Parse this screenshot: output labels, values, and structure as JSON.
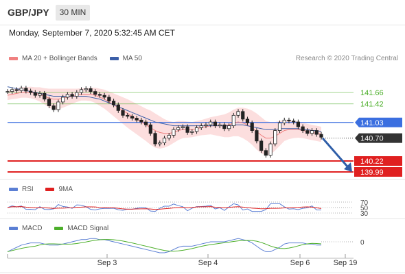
{
  "header": {
    "symbol": "GBP/JPY",
    "timeframe": "30 MIN",
    "datetime": "Monday, September 7, 2020 5:32:45 AM CET"
  },
  "legends": {
    "main": [
      {
        "label": "MA 20 + Bollinger Bands",
        "color": "#f08080"
      },
      {
        "label": "MA 50",
        "color": "#3c5fa8"
      }
    ],
    "rsi": [
      {
        "label": "RSI",
        "color": "#5b7fd4"
      },
      {
        "label": "9MA",
        "color": "#e02020"
      }
    ],
    "macd": [
      {
        "label": "MACD",
        "color": "#5b7fd4"
      },
      {
        "label": "MACD Signal",
        "color": "#4caf2a"
      }
    ]
  },
  "research_note": "Research © 2020 Trading Central",
  "x_axis_labels": [
    "Sep 3",
    "Sep 4",
    "Sep 6",
    "Sep 19"
  ],
  "chart_data": {
    "type": "line",
    "price_levels": [
      {
        "value": 141.66,
        "label": "141.66",
        "kind": "resistance",
        "color": "#4caf2a"
      },
      {
        "value": 141.42,
        "label": "141.42",
        "kind": "resistance",
        "color": "#4caf2a"
      },
      {
        "value": 141.03,
        "label": "141.03",
        "kind": "pivot",
        "color": "#3b6fe0"
      },
      {
        "value": 140.7,
        "label": "140.70",
        "kind": "last",
        "color": "#333333"
      },
      {
        "value": 140.22,
        "label": "140.22",
        "kind": "support",
        "color": "#e02020"
      },
      {
        "value": 139.99,
        "label": "139.99",
        "kind": "support",
        "color": "#e02020"
      }
    ],
    "close": [
      141.68,
      141.72,
      141.7,
      141.75,
      141.69,
      141.66,
      141.6,
      141.64,
      141.52,
      141.38,
      141.3,
      141.46,
      141.56,
      141.62,
      141.58,
      141.66,
      141.72,
      141.74,
      141.68,
      141.62,
      141.6,
      141.56,
      141.48,
      141.4,
      141.28,
      141.18,
      141.16,
      141.12,
      141.08,
      141.04,
      140.98,
      140.8,
      140.58,
      140.6,
      140.7,
      140.76,
      140.88,
      140.92,
      140.94,
      140.82,
      140.84,
      140.92,
      140.96,
      140.98,
      141.04,
      140.96,
      140.98,
      140.9,
      140.96,
      141.18,
      141.26,
      141.1,
      141.02,
      140.86,
      140.64,
      140.44,
      140.34,
      140.58,
      140.86,
      141.02,
      141.08,
      141.06,
      141.04,
      140.94,
      140.86,
      140.8,
      140.86,
      140.78,
      140.72
    ],
    "ma20": [
      141.6,
      141.62,
      141.64,
      141.66,
      141.66,
      141.66,
      141.64,
      141.62,
      141.58,
      141.54,
      141.52,
      141.52,
      141.54,
      141.56,
      141.58,
      141.6,
      141.62,
      141.62,
      141.62,
      141.6,
      141.56,
      141.52,
      141.46,
      141.4,
      141.34,
      141.28,
      141.22,
      141.16,
      141.1,
      141.04,
      140.98,
      140.92,
      140.86,
      140.82,
      140.8,
      140.8,
      140.82,
      140.86,
      140.88,
      140.88,
      140.88,
      140.9,
      140.92,
      140.94,
      140.96,
      140.96,
      140.96,
      140.96,
      140.98,
      141.02,
      141.04,
      141.02,
      140.98,
      140.92,
      140.84,
      140.76,
      140.7,
      140.7,
      140.74,
      140.8,
      140.86,
      140.88,
      140.88,
      140.88,
      140.86,
      140.84,
      140.82,
      140.8,
      140.78
    ],
    "ma50": [
      141.78,
      141.76,
      141.74,
      141.72,
      141.7,
      141.68,
      141.66,
      141.64,
      141.62,
      141.6,
      141.58,
      141.58,
      141.58,
      141.58,
      141.58,
      141.58,
      141.58,
      141.58,
      141.56,
      141.54,
      141.52,
      141.48,
      141.44,
      141.4,
      141.36,
      141.32,
      141.28,
      141.24,
      141.2,
      141.16,
      141.12,
      141.08,
      141.04,
      141.02,
      141.0,
      140.98,
      140.96,
      140.96,
      140.96,
      140.96,
      140.96,
      140.96,
      140.96,
      140.96,
      140.96,
      140.96,
      140.96,
      140.96,
      140.96,
      140.98,
      140.98,
      140.98,
      140.96,
      140.94,
      140.92,
      140.9,
      140.88,
      140.88,
      140.88,
      140.9,
      140.9,
      140.9,
      140.9,
      140.9,
      140.88,
      140.88,
      140.86,
      140.86,
      140.84
    ],
    "bb_width": [
      0.1,
      0.1,
      0.11,
      0.11,
      0.11,
      0.12,
      0.13,
      0.15,
      0.17,
      0.2,
      0.22,
      0.22,
      0.2,
      0.18,
      0.16,
      0.14,
      0.13,
      0.13,
      0.14,
      0.16,
      0.18,
      0.2,
      0.22,
      0.24,
      0.26,
      0.28,
      0.3,
      0.31,
      0.32,
      0.33,
      0.34,
      0.36,
      0.36,
      0.34,
      0.3,
      0.26,
      0.22,
      0.2,
      0.18,
      0.17,
      0.16,
      0.16,
      0.16,
      0.17,
      0.18,
      0.2,
      0.22,
      0.24,
      0.26,
      0.28,
      0.3,
      0.32,
      0.34,
      0.36,
      0.38,
      0.38,
      0.36,
      0.34,
      0.3,
      0.26,
      0.22,
      0.2,
      0.18,
      0.17,
      0.16,
      0.16,
      0.16,
      0.16,
      0.16
    ],
    "projection": {
      "from": 140.7,
      "to": 139.99
    },
    "rsi_levels": [
      70,
      50,
      30
    ],
    "macd_zero": 0
  }
}
